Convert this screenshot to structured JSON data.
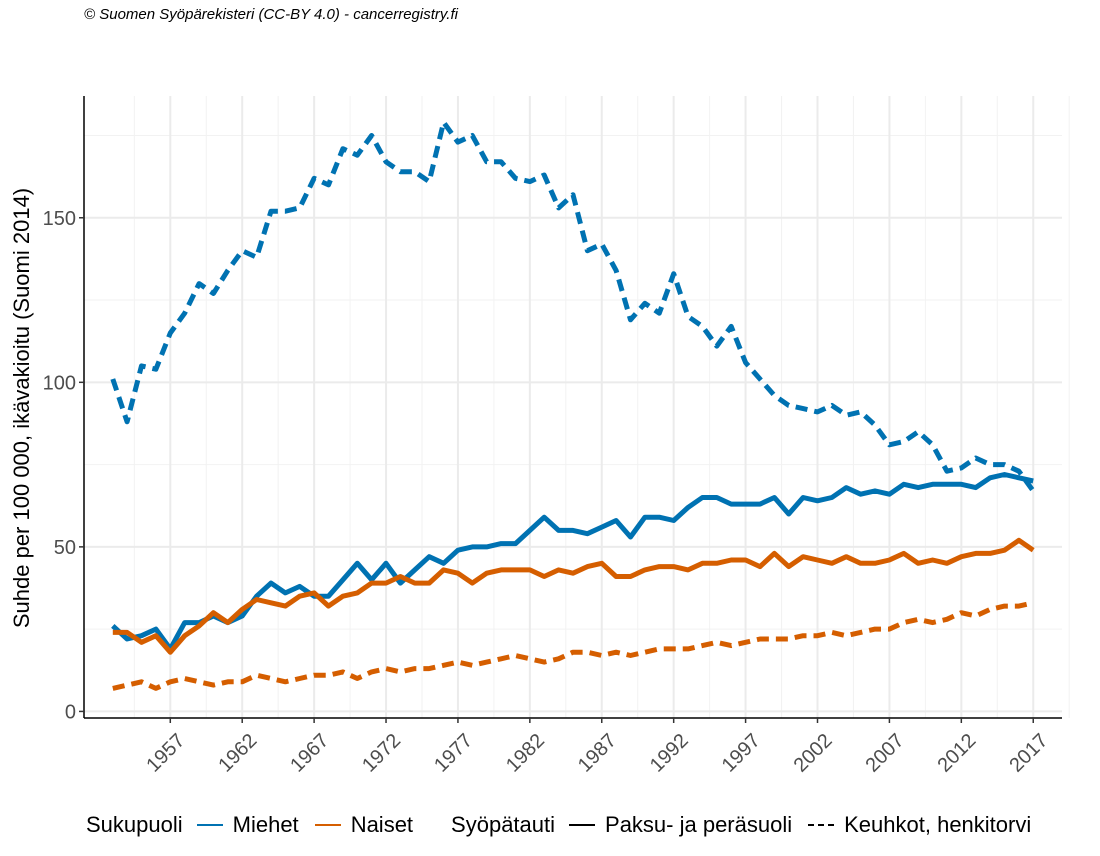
{
  "copyright": "© Suomen Syöpärekisteri (CC-BY 4.0) - cancerregistry.fi",
  "legend": {
    "sex_title": "Sukupuoli",
    "sex_items": [
      {
        "label": "Miehet",
        "color": "#0072b2"
      },
      {
        "label": "Naiset",
        "color": "#d55e00"
      }
    ],
    "cancer_title": "Syöpätauti",
    "cancer_items": [
      {
        "label": "Paksu- ja peräsuoli",
        "linestyle": "solid"
      },
      {
        "label": "Keuhkot, henkitorvi",
        "linestyle": "dashed"
      }
    ]
  },
  "chart_data": {
    "type": "line",
    "ylabel": "Suhde per 100 000, ikävakioitu (Suomi 2014)",
    "xlabel": "",
    "xlim": [
      1951,
      2019
    ],
    "ylim": [
      -2,
      187
    ],
    "xticks": [
      1957,
      1962,
      1967,
      1972,
      1977,
      1982,
      1987,
      1992,
      1997,
      2002,
      2007,
      2012,
      2017
    ],
    "yticks": [
      0,
      50,
      100,
      150
    ],
    "grid": true,
    "legend_position": "bottom",
    "x": [
      1953,
      1954,
      1955,
      1956,
      1957,
      1958,
      1959,
      1960,
      1961,
      1962,
      1963,
      1964,
      1965,
      1966,
      1967,
      1968,
      1969,
      1970,
      1971,
      1972,
      1973,
      1974,
      1975,
      1976,
      1977,
      1978,
      1979,
      1980,
      1981,
      1982,
      1983,
      1984,
      1985,
      1986,
      1987,
      1988,
      1989,
      1990,
      1991,
      1992,
      1993,
      1994,
      1995,
      1996,
      1997,
      1998,
      1999,
      2000,
      2001,
      2002,
      2003,
      2004,
      2005,
      2006,
      2007,
      2008,
      2009,
      2010,
      2011,
      2012,
      2013,
      2014,
      2015,
      2016,
      2017
    ],
    "series": [
      {
        "name": "Miehet",
        "sex": "Miehet",
        "cancer": "Keuhkot, henkitorvi",
        "color": "#0072b2",
        "dash": true,
        "values": [
          101,
          88,
          105,
          104,
          115,
          121,
          130,
          127,
          134,
          140,
          138,
          152,
          152,
          153,
          162,
          160,
          171,
          169,
          175,
          167,
          164,
          164,
          161,
          179,
          173,
          175,
          167,
          167,
          162,
          161,
          163,
          153,
          157,
          140,
          142,
          134,
          119,
          124,
          121,
          133,
          120,
          117,
          111,
          117,
          106,
          101,
          96,
          93,
          92,
          91,
          93,
          90,
          91,
          87,
          81,
          82,
          85,
          81,
          73,
          74,
          77,
          75,
          75,
          73,
          67
        ]
      },
      {
        "name": "Miehet",
        "sex": "Miehet",
        "cancer": "Paksu- ja peräsuoli",
        "color": "#0072b2",
        "dash": false,
        "values": [
          26,
          22,
          23,
          25,
          19,
          27,
          27,
          29,
          27,
          29,
          35,
          39,
          36,
          38,
          35,
          35,
          40,
          45,
          40,
          45,
          39,
          43,
          47,
          45,
          49,
          50,
          50,
          51,
          51,
          55,
          59,
          55,
          55,
          54,
          56,
          58,
          53,
          59,
          59,
          58,
          62,
          65,
          65,
          63,
          63,
          63,
          65,
          60,
          65,
          64,
          65,
          68,
          66,
          67,
          66,
          69,
          68,
          69,
          69,
          69,
          68,
          71,
          72,
          71,
          70
        ]
      },
      {
        "name": "Naiset",
        "sex": "Naiset",
        "cancer": "Paksu- ja peräsuoli",
        "color": "#d55e00",
        "dash": false,
        "values": [
          24,
          24,
          21,
          23,
          18,
          23,
          26,
          30,
          27,
          31,
          34,
          33,
          32,
          35,
          36,
          32,
          35,
          36,
          39,
          39,
          41,
          39,
          39,
          43,
          42,
          39,
          42,
          43,
          43,
          43,
          41,
          43,
          42,
          44,
          45,
          41,
          41,
          43,
          44,
          44,
          43,
          45,
          45,
          46,
          46,
          44,
          48,
          44,
          47,
          46,
          45,
          47,
          45,
          45,
          46,
          48,
          45,
          46,
          45,
          47,
          48,
          48,
          49,
          52,
          49
        ]
      },
      {
        "name": "Naiset",
        "sex": "Naiset",
        "cancer": "Keuhkot, henkitorvi",
        "color": "#d55e00",
        "dash": true,
        "values": [
          7,
          8,
          9,
          7,
          9,
          10,
          9,
          8,
          9,
          9,
          11,
          10,
          9,
          10,
          11,
          11,
          12,
          10,
          12,
          13,
          12,
          13,
          13,
          14,
          15,
          14,
          15,
          16,
          17,
          16,
          15,
          16,
          18,
          18,
          17,
          18,
          17,
          18,
          19,
          19,
          19,
          20,
          21,
          20,
          21,
          22,
          22,
          22,
          23,
          23,
          24,
          23,
          24,
          25,
          25,
          27,
          28,
          27,
          28,
          30,
          29,
          31,
          32,
          32,
          33
        ]
      }
    ]
  }
}
